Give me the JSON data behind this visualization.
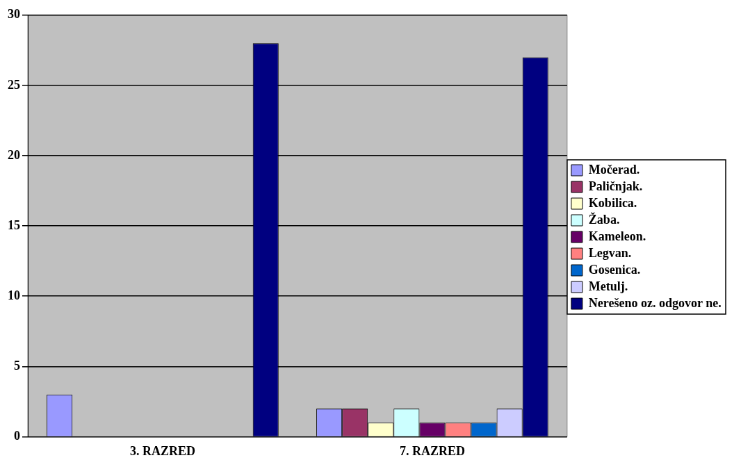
{
  "chart_data": {
    "type": "bar",
    "categories": [
      "3. RAZRED",
      "7. RAZRED"
    ],
    "series": [
      {
        "name": "Močerad.",
        "color": "#9999ff",
        "values": [
          3,
          2
        ]
      },
      {
        "name": "Paličnjak.",
        "color": "#993366",
        "values": [
          0,
          2
        ]
      },
      {
        "name": "Kobilica.",
        "color": "#ffffcc",
        "values": [
          0,
          1
        ]
      },
      {
        "name": "Žaba.",
        "color": "#ccffff",
        "values": [
          0,
          2
        ]
      },
      {
        "name": "Kameleon.",
        "color": "#660066",
        "values": [
          0,
          1
        ]
      },
      {
        "name": "Legvan.",
        "color": "#ff8080",
        "values": [
          0,
          1
        ]
      },
      {
        "name": "Gosenica.",
        "color": "#0066cc",
        "values": [
          0,
          1
        ]
      },
      {
        "name": "Metulj.",
        "color": "#ccccff",
        "values": [
          0,
          2
        ]
      },
      {
        "name": "Nerešeno oz. odgovor ne.",
        "color": "#000080",
        "values": [
          28,
          27
        ]
      }
    ],
    "ylim": [
      0,
      30
    ],
    "yticks": [
      0,
      5,
      10,
      15,
      20,
      25,
      30
    ],
    "grid": "y",
    "legend": "right"
  }
}
